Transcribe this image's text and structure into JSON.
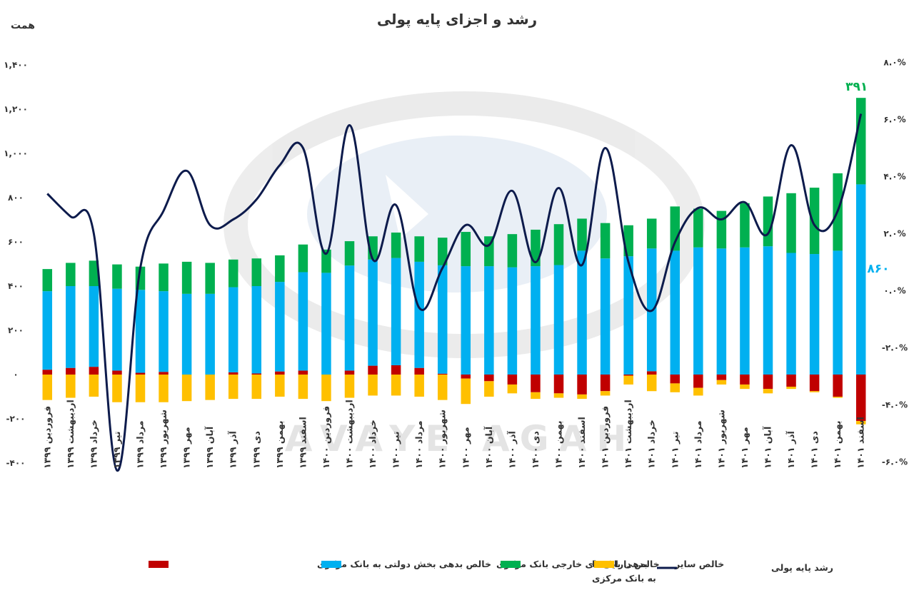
{
  "chart_data": {
    "type": "bar",
    "title": "رشد و اجزای پایه پولی",
    "y_unit_label": "همت",
    "ylim": [
      -400,
      1400
    ],
    "y_ticks": [
      "-۴۰۰",
      "-۲۰۰",
      "۰",
      "۲۰۰",
      "۴۰۰",
      "۶۰۰",
      "۸۰۰",
      "۱,۰۰۰",
      "۱,۲۰۰",
      "۱,۴۰۰"
    ],
    "y2lim": [
      -6.0,
      8.0
    ],
    "y2_ticks": [
      "-۶.۰%",
      "-۴.۰%",
      "-۲.۰%",
      "۰.۰%",
      "۲.۰%",
      "۴.۰%",
      "۶.۰%",
      "۸.۰%"
    ],
    "categories": [
      "فروردین ۱۳۹۹",
      "اردیبهشت ۱۳۹۹",
      "خرداد ۱۳۹۹",
      "تیر ۱۳۹۹",
      "مرداد ۱۳۹۹",
      "شهریور ۱۳۹۹",
      "مهر ۱۳۹۹",
      "آبان ۱۳۹۹",
      "آذر ۱۳۹۹",
      "دی ۱۳۹۹",
      "بهمن ۱۳۹۹",
      "اسفند ۱۳۹۹",
      "فروردین ۱۴۰۰",
      "اردیبهشت ۱۴۰۰",
      "خرداد ۱۴۰۰",
      "تیر ۱۴۰۰",
      "مرداد ۱۴۰۰",
      "شهریور ۱۴۰۰",
      "مهر ۱۴۰۰",
      "آبان ۱۴۰۰",
      "آذر ۱۴۰۰",
      "دی ۱۴۰۰",
      "بهمن ۱۴۰۰",
      "اسفند ۱۴۰۰",
      "فروردین ۱۴۰۱",
      "اردیبهشت ۱۴۰۱",
      "خرداد ۱۴۰۱",
      "تیر ۱۴۰۱",
      "مرداد ۱۴۰۱",
      "شهریور ۱۴۰۱",
      "مهر ۱۴۰۱",
      "آبان ۱۴۰۱",
      "آذر ۱۴۰۱",
      "دی ۱۴۰۱",
      "بهمن ۱۴۰۱",
      "اسفند ۱۴۰۱"
    ],
    "series": [
      {
        "name": "خالص بدهی بخش دولتی به بانک مرکزی",
        "color": "#C00000",
        "kind": "bar",
        "values": [
          22,
          30,
          35,
          18,
          8,
          12,
          0,
          0,
          10,
          5,
          14,
          18,
          0,
          18,
          40,
          42,
          30,
          4,
          -18,
          -30,
          -45,
          -80,
          -85,
          -90,
          -75,
          -5,
          15,
          -40,
          -60,
          -25,
          -45,
          -65,
          -55,
          -75,
          -100,
          -210
        ]
      },
      {
        "name": "خالص دارایی‌های خارجی بانک مرکزی",
        "color": "#00B0F0",
        "kind": "bar",
        "values": [
          355,
          370,
          365,
          370,
          375,
          365,
          365,
          365,
          385,
          395,
          405,
          445,
          460,
          475,
          480,
          485,
          480,
          490,
          490,
          490,
          485,
          490,
          495,
          560,
          525,
          535,
          555,
          560,
          575,
          570,
          575,
          580,
          550,
          545,
          560,
          860
        ]
      },
      {
        "name": "بدهی بانک‌ها به بانک مرکزی",
        "color": "#00B050",
        "kind": "bar",
        "values": [
          100,
          105,
          115,
          110,
          105,
          125,
          145,
          140,
          125,
          125,
          120,
          125,
          105,
          110,
          105,
          115,
          115,
          125,
          155,
          135,
          150,
          165,
          185,
          145,
          160,
          140,
          135,
          200,
          175,
          170,
          200,
          225,
          270,
          300,
          350,
          391
        ]
      },
      {
        "name": "خالص سایر",
        "color": "#FFC000",
        "kind": "bar",
        "values": [
          -115,
          -105,
          -100,
          -125,
          -125,
          -125,
          -120,
          -115,
          -110,
          -110,
          -100,
          -110,
          -120,
          -105,
          -95,
          -95,
          -100,
          -115,
          -115,
          -70,
          -40,
          -30,
          -20,
          -20,
          -20,
          -40,
          -75,
          -40,
          -35,
          -20,
          -20,
          -20,
          -10,
          -5,
          -5,
          -15
        ]
      },
      {
        "name": "رشد پایه پولی",
        "color": "#0D1B4C",
        "kind": "line",
        "values": [
          3.4,
          2.6,
          2.0,
          -6.3,
          0.8,
          2.8,
          4.2,
          2.3,
          2.5,
          3.2,
          4.4,
          5.0,
          1.3,
          5.8,
          1.1,
          3.0,
          -0.6,
          0.8,
          2.3,
          1.6,
          3.5,
          1.0,
          3.6,
          0.9,
          5.0,
          1.0,
          -0.7,
          1.7,
          2.9,
          2.5,
          3.1,
          2.0,
          5.1,
          2.3,
          2.8,
          6.2
        ]
      }
    ],
    "annotations": [
      {
        "text": "۳۹۱",
        "color": "#00B050"
      },
      {
        "text": "۸۶۰",
        "color": "#00B0F0"
      }
    ],
    "legend": [
      {
        "label": "خالص بدهی بخش دولتی به بانک مرکزی",
        "color": "#C00000",
        "kind": "bar"
      },
      {
        "label": "خالص دارایی‌های خارجی بانک مرکزی",
        "color": "#00B0F0",
        "kind": "bar"
      },
      {
        "label": "بدهی بانک‌ها",
        "label2": "به بانک مرکزی",
        "color": "#00B050",
        "kind": "bar"
      },
      {
        "label": "خالص سایر",
        "color": "#FFC000",
        "kind": "bar"
      },
      {
        "label": "رشد پایه پولی",
        "color": "#0D1B4C",
        "kind": "line"
      }
    ],
    "legend_position": "bottom",
    "grid": false
  },
  "watermark": "AVAYE AGAH"
}
